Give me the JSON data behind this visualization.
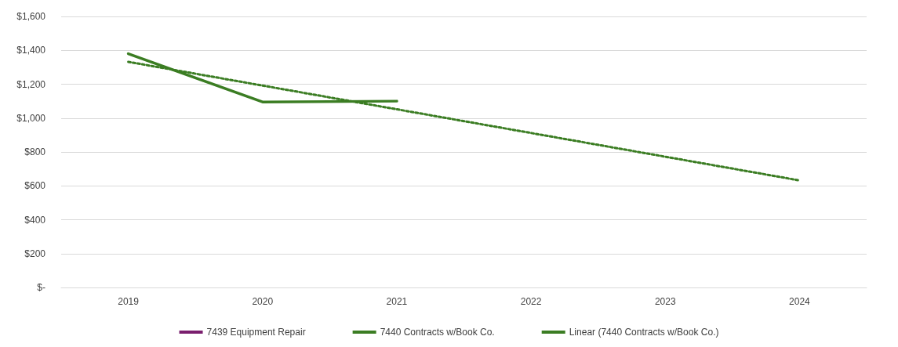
{
  "chart_data": {
    "type": "line",
    "categories": [
      "2019",
      "2020",
      "2021",
      "2022",
      "2023",
      "2024"
    ],
    "series": [
      {
        "name": "7439 Equipment Repair",
        "color": "#7a1f6e",
        "values": [
          null,
          null,
          null,
          null,
          null,
          null
        ]
      },
      {
        "name": "7440 Contracts w/Book Co.",
        "color": "#3b7d23",
        "values": [
          1380,
          1095,
          1100,
          null,
          null,
          null
        ]
      },
      {
        "name": "Linear (7440 Contracts w/Book Co.)",
        "color": "#3b7d23",
        "line_style": "dotted",
        "values": [
          1332,
          1192,
          1052,
          912,
          772,
          632
        ]
      }
    ],
    "ylim": [
      0,
      1600
    ],
    "yticks": [
      {
        "value": 0,
        "label": "$-"
      },
      {
        "value": 200,
        "label": "$200"
      },
      {
        "value": 400,
        "label": "$400"
      },
      {
        "value": 600,
        "label": "$600"
      },
      {
        "value": 800,
        "label": "$800"
      },
      {
        "value": 1000,
        "label": "$1,000"
      },
      {
        "value": 1200,
        "label": "$1,200"
      },
      {
        "value": 1400,
        "label": "$1,400"
      },
      {
        "value": 1600,
        "label": "$1,600"
      }
    ],
    "grid": "y",
    "legend": "bottom",
    "marker": "none"
  }
}
